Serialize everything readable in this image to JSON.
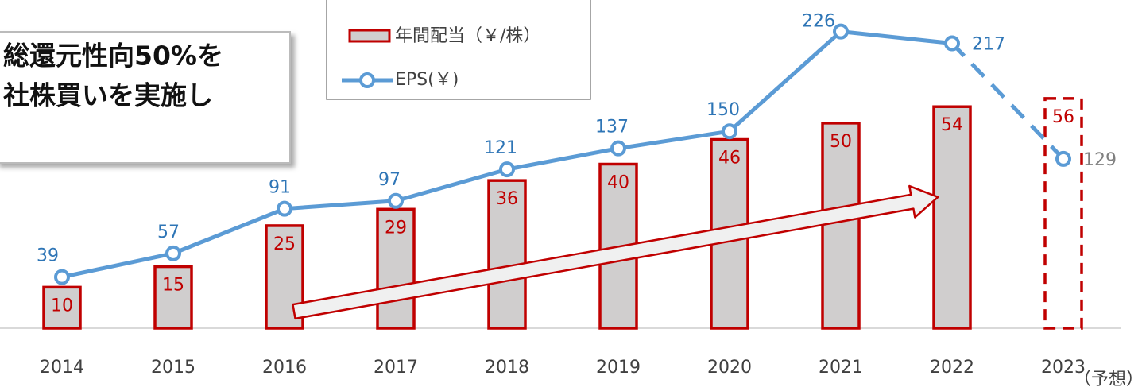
{
  "chart_data": {
    "type": "bar_line",
    "categories": [
      "2014",
      "2015",
      "2016",
      "2017",
      "2018",
      "2019",
      "2020",
      "2021",
      "2022",
      "2023"
    ],
    "forecast_note": "（予想）",
    "series": [
      {
        "name": "年間配当（￥/株）",
        "type": "bar",
        "color": "#d0cece",
        "edge_color": "#c00000",
        "values": [
          10,
          15,
          25,
          29,
          36,
          40,
          46,
          50,
          54,
          56
        ],
        "dashed": [
          false,
          false,
          false,
          false,
          false,
          false,
          false,
          false,
          false,
          true
        ]
      },
      {
        "name": "EPS(￥)",
        "type": "line",
        "axis": "y2",
        "color": "#5b9bd5",
        "values": [
          39,
          57,
          91,
          97,
          121,
          137,
          150,
          226,
          217,
          129
        ],
        "dashed": [
          false,
          false,
          false,
          false,
          false,
          false,
          false,
          false,
          false,
          true
        ]
      }
    ],
    "ylim": [
      0,
      80
    ],
    "y2lim": [
      0,
      250
    ],
    "annotations": [
      "総還元性向50%を",
      "社株買いを実施し"
    ]
  }
}
